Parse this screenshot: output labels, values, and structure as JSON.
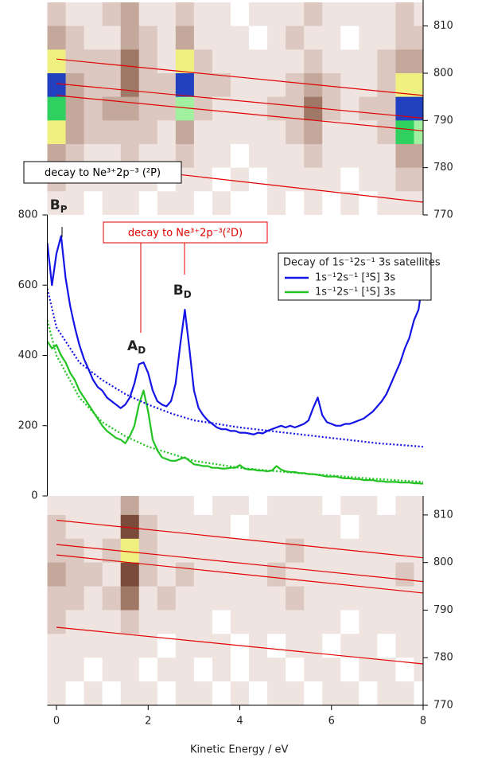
{
  "chart_data": [
    {
      "type": "heatmap",
      "xlim": [
        -0.2,
        8
      ],
      "ylim": [
        770,
        815.5
      ],
      "yticks": [
        770,
        780,
        790,
        800,
        810
      ],
      "y_axis_position": "right",
      "x": [
        0,
        0.4,
        0.8,
        1.2,
        1.6,
        2.0,
        2.4,
        2.8,
        3.2,
        3.6,
        4.0,
        4.4,
        4.8,
        5.2,
        5.6,
        6.0,
        6.4,
        6.8,
        7.2,
        7.6,
        8.0
      ],
      "y": [
        812.5,
        807.5,
        802.5,
        797.5,
        792.5,
        787.5,
        782.5,
        777.5,
        772.5
      ],
      "colorscale": [
        "#ffffff",
        "#efe4e0",
        "#dcc8c0",
        "#c4a89c",
        "#a07868",
        "#7a4a3a",
        "#f0f080",
        "#a0f0a0",
        "#30d060",
        "#2040c0"
      ],
      "z": [
        [
          2,
          1,
          1,
          2,
          3,
          1,
          1,
          2,
          1,
          1,
          0,
          1,
          1,
          1,
          2,
          1,
          1,
          1,
          1,
          2,
          1
        ],
        [
          3,
          2,
          1,
          1,
          3,
          2,
          1,
          3,
          1,
          1,
          1,
          0,
          1,
          2,
          1,
          1,
          0,
          1,
          1,
          2,
          2
        ],
        [
          6,
          2,
          2,
          2,
          4,
          2,
          1,
          6,
          2,
          1,
          1,
          1,
          1,
          1,
          2,
          1,
          1,
          1,
          2,
          3,
          3
        ],
        [
          9,
          3,
          2,
          2,
          4,
          2,
          2,
          9,
          2,
          2,
          1,
          1,
          1,
          2,
          3,
          2,
          1,
          1,
          2,
          6,
          6
        ],
        [
          8,
          3,
          2,
          3,
          3,
          2,
          2,
          7,
          2,
          1,
          1,
          1,
          2,
          2,
          4,
          2,
          1,
          2,
          2,
          9,
          9
        ],
        [
          6,
          3,
          2,
          2,
          2,
          2,
          1,
          3,
          1,
          1,
          1,
          1,
          1,
          2,
          3,
          1,
          1,
          1,
          2,
          8,
          7
        ],
        [
          3,
          2,
          1,
          1,
          2,
          1,
          1,
          2,
          1,
          1,
          0,
          1,
          1,
          1,
          2,
          1,
          1,
          1,
          1,
          3,
          3
        ],
        [
          2,
          1,
          1,
          1,
          1,
          1,
          0,
          1,
          1,
          0,
          1,
          0,
          1,
          1,
          1,
          1,
          0,
          1,
          1,
          2,
          2
        ],
        [
          1,
          1,
          0,
          1,
          1,
          0,
          1,
          1,
          0,
          1,
          0,
          0,
          1,
          0,
          1,
          0,
          1,
          0,
          1,
          1,
          1
        ]
      ],
      "line_color": "#e00000",
      "lines": [
        {
          "x": [
            0,
            8
          ],
          "y": [
            803,
            795.3
          ]
        },
        {
          "x": [
            0,
            8
          ],
          "y": [
            797.8,
            790.5
          ]
        },
        {
          "x": [
            0,
            8
          ],
          "y": [
            795.3,
            787.8
          ]
        },
        {
          "x": [
            2.73,
            8
          ],
          "y": [
            778.5,
            772.7
          ]
        }
      ]
    },
    {
      "type": "line",
      "xlim": [
        -0.2,
        8
      ],
      "ylim": [
        0,
        800
      ],
      "yticks": [
        0,
        200,
        400,
        600,
        800
      ],
      "legend_title": "Decay of 1s⁻¹2s⁻¹ 3s satellites",
      "series": [
        {
          "name": "1s⁻¹2s⁻¹ [³S] 3s",
          "color": "#1414e6",
          "line_style": "solid",
          "x": [
            -0.2,
            -0.1,
            0,
            0.1,
            0.2,
            0.3,
            0.4,
            0.5,
            0.6,
            0.7,
            0.8,
            0.9,
            1.0,
            1.1,
            1.2,
            1.3,
            1.4,
            1.5,
            1.6,
            1.7,
            1.8,
            1.9,
            2.0,
            2.1,
            2.2,
            2.3,
            2.4,
            2.5,
            2.6,
            2.7,
            2.8,
            2.9,
            3.0,
            3.1,
            3.2,
            3.3,
            3.4,
            3.5,
            3.6,
            3.7,
            3.8,
            3.9,
            4.0,
            4.1,
            4.2,
            4.3,
            4.4,
            4.5,
            4.6,
            4.7,
            4.8,
            4.9,
            5.0,
            5.1,
            5.2,
            5.3,
            5.4,
            5.5,
            5.6,
            5.7,
            5.8,
            5.9,
            6.0,
            6.1,
            6.2,
            6.3,
            6.4,
            6.5,
            6.6,
            6.7,
            6.8,
            6.9,
            7.0,
            7.1,
            7.2,
            7.3,
            7.4,
            7.5,
            7.6,
            7.7,
            7.8,
            7.9,
            8.0
          ],
          "values": [
            720,
            600,
            690,
            740,
            620,
            540,
            480,
            430,
            390,
            360,
            330,
            310,
            300,
            280,
            270,
            260,
            250,
            260,
            280,
            320,
            375,
            380,
            350,
            300,
            270,
            260,
            255,
            270,
            320,
            430,
            530,
            420,
            300,
            250,
            230,
            215,
            205,
            195,
            190,
            190,
            185,
            185,
            180,
            180,
            178,
            175,
            180,
            178,
            185,
            190,
            195,
            200,
            195,
            200,
            195,
            200,
            205,
            215,
            250,
            280,
            230,
            210,
            205,
            200,
            200,
            205,
            205,
            210,
            215,
            220,
            230,
            240,
            255,
            270,
            290,
            320,
            350,
            380,
            420,
            450,
            500,
            530,
            620
          ]
        },
        {
          "name": "1s⁻¹2s⁻¹ [¹S] 3s",
          "color": "#22c322",
          "line_style": "solid",
          "x": [
            -0.2,
            -0.1,
            0,
            0.1,
            0.2,
            0.3,
            0.4,
            0.5,
            0.6,
            0.7,
            0.8,
            0.9,
            1.0,
            1.1,
            1.2,
            1.3,
            1.4,
            1.5,
            1.6,
            1.7,
            1.8,
            1.9,
            2.0,
            2.1,
            2.2,
            2.3,
            2.4,
            2.5,
            2.6,
            2.7,
            2.8,
            2.9,
            3.0,
            3.1,
            3.2,
            3.3,
            3.4,
            3.5,
            3.6,
            3.7,
            3.8,
            3.9,
            4.0,
            4.1,
            4.2,
            4.3,
            4.4,
            4.5,
            4.6,
            4.7,
            4.8,
            4.9,
            5.0,
            5.1,
            5.2,
            5.3,
            5.4,
            5.5,
            5.6,
            5.7,
            5.8,
            5.9,
            6.0,
            6.1,
            6.2,
            6.3,
            6.4,
            6.5,
            6.6,
            6.7,
            6.8,
            6.9,
            7.0,
            7.1,
            7.2,
            7.3,
            7.4,
            7.5,
            7.6,
            7.7,
            7.8,
            7.9,
            8.0
          ],
          "values": [
            440,
            420,
            430,
            400,
            380,
            350,
            330,
            300,
            280,
            260,
            240,
            220,
            200,
            185,
            175,
            165,
            160,
            150,
            170,
            200,
            260,
            300,
            240,
            160,
            130,
            110,
            105,
            100,
            100,
            105,
            110,
            100,
            90,
            88,
            85,
            85,
            80,
            80,
            78,
            78,
            80,
            80,
            88,
            78,
            75,
            75,
            72,
            72,
            70,
            72,
            85,
            75,
            70,
            68,
            68,
            65,
            65,
            62,
            62,
            60,
            58,
            55,
            55,
            55,
            52,
            50,
            50,
            48,
            48,
            45,
            45,
            45,
            42,
            42,
            40,
            40,
            40,
            38,
            38,
            38,
            36,
            36,
            35
          ]
        },
        {
          "color": "#1414e6",
          "line_style": "dotted",
          "x": [
            -0.2,
            0,
            0.5,
            1,
            1.5,
            2,
            2.5,
            3,
            3.5,
            4,
            5,
            6,
            7,
            8
          ],
          "values": [
            590,
            480,
            380,
            330,
            290,
            260,
            235,
            215,
            205,
            195,
            180,
            165,
            150,
            140
          ]
        },
        {
          "color": "#22c322",
          "line_style": "dotted",
          "x": [
            -0.2,
            0,
            0.5,
            1,
            1.5,
            2,
            2.5,
            3,
            3.5,
            4,
            5,
            6,
            7,
            8
          ],
          "values": [
            500,
            400,
            280,
            210,
            170,
            140,
            120,
            100,
            90,
            80,
            68,
            58,
            48,
            40
          ]
        }
      ],
      "annotations": [
        {
          "text": "B",
          "sub": "P",
          "x": 0.15,
          "y": 827
        },
        {
          "text": "A",
          "sub": "D",
          "x": 1.85,
          "y": 426
        },
        {
          "text": "B",
          "sub": "D",
          "x": 2.85,
          "y": 585
        }
      ],
      "labels": [
        {
          "text": "decay to Ne³⁺2p⁻³ (²P)",
          "color": "#000000"
        },
        {
          "text": "decay to Ne³⁺2p⁻³(²D)",
          "color": "#e00000"
        }
      ]
    },
    {
      "type": "heatmap",
      "xlim": [
        -0.2,
        8
      ],
      "ylim": [
        770,
        814
      ],
      "yticks": [
        770,
        780,
        790,
        800,
        810
      ],
      "y_axis_position": "right",
      "xticks": [
        0,
        2,
        4,
        6,
        8
      ],
      "xlabel": "Kinetic Energy / eV",
      "x": [
        0,
        0.4,
        0.8,
        1.2,
        1.6,
        2.0,
        2.4,
        2.8,
        3.2,
        3.6,
        4.0,
        4.4,
        4.8,
        5.2,
        5.6,
        6.0,
        6.4,
        6.8,
        7.2,
        7.6,
        8.0
      ],
      "y": [
        812.5,
        807.5,
        802.5,
        797.5,
        792.5,
        787.5,
        782.5,
        777.5,
        772.5
      ],
      "colorscale": [
        "#ffffff",
        "#efe4e0",
        "#dcc8c0",
        "#c4a89c",
        "#a07868",
        "#7a4a3a",
        "#f0f080",
        "#a0f0a0",
        "#30d060",
        "#2040c0"
      ],
      "z": [
        [
          1,
          1,
          1,
          1,
          3,
          1,
          1,
          1,
          0,
          1,
          1,
          0,
          1,
          1,
          1,
          0,
          1,
          1,
          0,
          1,
          1
        ],
        [
          2,
          1,
          1,
          1,
          5,
          2,
          1,
          1,
          1,
          1,
          0,
          1,
          1,
          1,
          1,
          1,
          0,
          1,
          1,
          1,
          1
        ],
        [
          2,
          2,
          1,
          2,
          6,
          2,
          1,
          1,
          1,
          1,
          1,
          1,
          1,
          2,
          1,
          1,
          1,
          1,
          1,
          1,
          1
        ],
        [
          3,
          2,
          2,
          1,
          5,
          2,
          1,
          2,
          1,
          1,
          1,
          1,
          2,
          1,
          1,
          1,
          1,
          1,
          1,
          2,
          1
        ],
        [
          2,
          2,
          1,
          2,
          4,
          1,
          2,
          1,
          1,
          1,
          1,
          1,
          1,
          2,
          1,
          1,
          1,
          1,
          1,
          1,
          1
        ],
        [
          2,
          1,
          1,
          1,
          2,
          1,
          1,
          1,
          1,
          0,
          1,
          1,
          1,
          1,
          1,
          1,
          0,
          1,
          1,
          1,
          1
        ],
        [
          1,
          1,
          1,
          1,
          1,
          1,
          0,
          1,
          1,
          1,
          0,
          1,
          0,
          1,
          1,
          0,
          1,
          1,
          0,
          1,
          1
        ],
        [
          1,
          1,
          0,
          1,
          1,
          0,
          1,
          1,
          0,
          1,
          0,
          1,
          1,
          0,
          1,
          1,
          0,
          1,
          1,
          0,
          1
        ],
        [
          1,
          0,
          1,
          0,
          1,
          1,
          0,
          1,
          1,
          0,
          1,
          0,
          1,
          1,
          0,
          1,
          1,
          0,
          1,
          1,
          0
        ]
      ],
      "line_color": "#e00000",
      "lines": [
        {
          "x": [
            0,
            8
          ],
          "y": [
            808.9,
            801
          ]
        },
        {
          "x": [
            0,
            8
          ],
          "y": [
            803.8,
            796
          ]
        },
        {
          "x": [
            0,
            8
          ],
          "y": [
            801.6,
            793.6
          ]
        },
        {
          "x": [
            0,
            8
          ],
          "y": [
            786.4,
            778.7
          ]
        }
      ]
    }
  ]
}
